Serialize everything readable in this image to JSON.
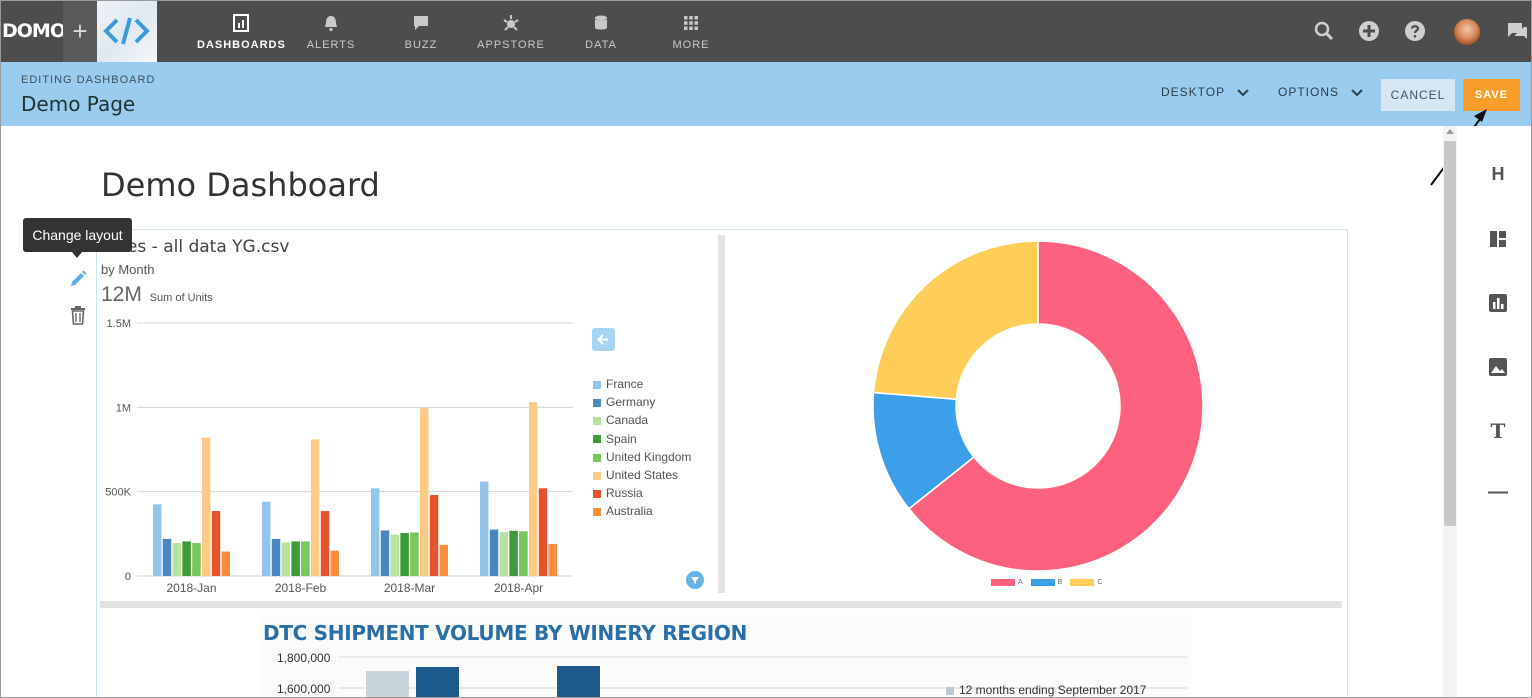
{
  "header": {
    "logo_text": "DOMO",
    "nav": [
      {
        "label": "DASHBOARDS",
        "icon": "dashboard-icon",
        "active": true
      },
      {
        "label": "ALERTS",
        "icon": "bell-icon",
        "active": false
      },
      {
        "label": "BUZZ",
        "icon": "chat-icon",
        "active": false
      },
      {
        "label": "APPSTORE",
        "icon": "appstore-icon",
        "active": false
      },
      {
        "label": "DATA",
        "icon": "database-icon",
        "active": false
      },
      {
        "label": "MORE",
        "icon": "grid-icon",
        "active": false
      }
    ]
  },
  "editbar": {
    "mode_label": "EDITING DASHBOARD",
    "page_name": "Demo Page",
    "device_dropdown": "DESKTOP",
    "options_dropdown": "OPTIONS",
    "cancel_label": "CANCEL",
    "save_label": "SAVE"
  },
  "dashboard": {
    "title": "Demo Dashboard",
    "tooltip": "Change layout"
  },
  "bar_card": {
    "title": "Sales - all data YG.csv",
    "subtitle": "by Month",
    "summary_value": "12M",
    "summary_label": "Sum of Units"
  },
  "chart_data": [
    {
      "type": "bar",
      "title": "Sales - all data YG.csv",
      "subtitle": "by Month",
      "categories": [
        "2018-Jan",
        "2018-Feb",
        "2018-Mar",
        "2018-Apr"
      ],
      "ylim": [
        0,
        1500000
      ],
      "yticks": [
        "0",
        "500K",
        "1M",
        "1.5M"
      ],
      "grid": true,
      "legend_position": "right",
      "series": [
        {
          "name": "France",
          "color": "#91c6ea",
          "values": [
            425000,
            440000,
            520000,
            560000
          ]
        },
        {
          "name": "Germany",
          "color": "#4a86c0",
          "values": [
            220000,
            220000,
            270000,
            275000
          ]
        },
        {
          "name": "Canada",
          "color": "#b6e29b",
          "values": [
            195000,
            200000,
            245000,
            260000
          ]
        },
        {
          "name": "Spain",
          "color": "#3f9a38",
          "values": [
            205000,
            205000,
            255000,
            268000
          ]
        },
        {
          "name": "United Kingdom",
          "color": "#79c75a",
          "values": [
            195000,
            205000,
            258000,
            265000
          ]
        },
        {
          "name": "United States",
          "color": "#fdcb86",
          "values": [
            820000,
            810000,
            995000,
            1030000
          ]
        },
        {
          "name": "Russia",
          "color": "#e2542b",
          "values": [
            385000,
            385000,
            480000,
            520000
          ]
        },
        {
          "name": "Australia",
          "color": "#fa8e40",
          "values": [
            145000,
            150000,
            185000,
            190000
          ]
        }
      ]
    },
    {
      "type": "pie",
      "donut": true,
      "legend_position": "bottom",
      "slices": [
        {
          "name": "A",
          "color": "#fe6180",
          "value": 0.643
        },
        {
          "name": "B",
          "color": "#3b9fea",
          "value": 0.12
        },
        {
          "name": "C",
          "color": "#fece59",
          "value": 0.237
        }
      ]
    },
    {
      "type": "bar",
      "title": "DTC SHIPMENT VOLUME BY WINERY REGION",
      "yticks": [
        "1,600,000",
        "1,800,000"
      ],
      "legend": [
        "12 months ending September 2017"
      ]
    }
  ]
}
